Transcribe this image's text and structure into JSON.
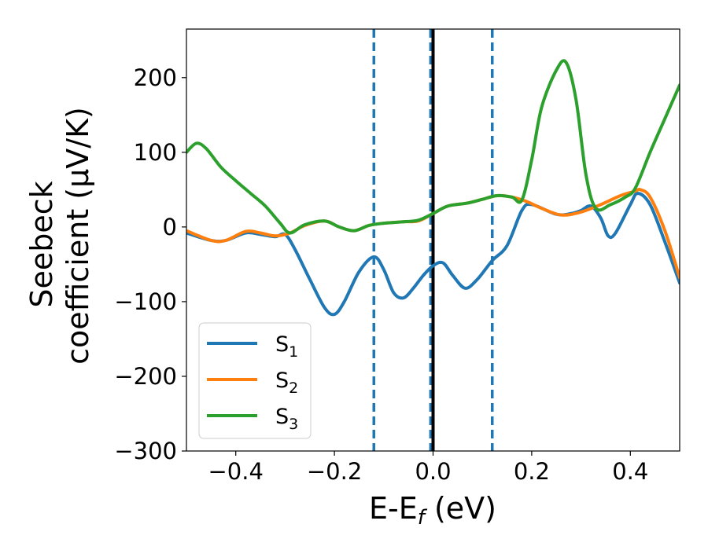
{
  "chart_data": {
    "type": "line",
    "xlabel": {
      "main": "E-E",
      "sub": "f",
      "tail": " (eV)"
    },
    "ylabel": {
      "line1": "Seebeck",
      "line2": "coefficient  (μV/K)"
    },
    "xlim": [
      -0.5,
      0.5
    ],
    "ylim": [
      -300,
      265
    ],
    "xticks": [
      -0.4,
      -0.2,
      0.0,
      0.2,
      0.4
    ],
    "xtick_labels": [
      "−0.4",
      "−0.2",
      "0.0",
      "0.2",
      "0.4"
    ],
    "yticks": [
      -300,
      -200,
      -100,
      0,
      100,
      200
    ],
    "ytick_labels": [
      "−300",
      "−200",
      "−100",
      "0",
      "100",
      "200"
    ],
    "grid": false,
    "legend_position": "bottom-left",
    "vlines": [
      {
        "x": -0.12,
        "style": "dashed",
        "color": "#1f77b4"
      },
      {
        "x": -0.005,
        "style": "dashed",
        "color": "#1f77b4"
      },
      {
        "x": 0.12,
        "style": "dashed",
        "color": "#1f77b4"
      },
      {
        "x": 0.0,
        "style": "solid",
        "color": "#000000"
      }
    ],
    "series": [
      {
        "name": "S",
        "sub": "1",
        "color": "#1f77b4",
        "x": [
          -0.5,
          -0.45,
          -0.42,
          -0.38,
          -0.35,
          -0.32,
          -0.3,
          -0.28,
          -0.25,
          -0.22,
          -0.2,
          -0.18,
          -0.15,
          -0.12,
          -0.1,
          -0.08,
          -0.06,
          -0.04,
          -0.02,
          0.0,
          0.02,
          0.04,
          0.065,
          0.09,
          0.12,
          0.15,
          0.18,
          0.2,
          0.25,
          0.28,
          0.3,
          0.32,
          0.34,
          0.355,
          0.37,
          0.4,
          0.415,
          0.44,
          0.47,
          0.5
        ],
        "y": [
          -8,
          -18,
          -18,
          -8,
          -10,
          -13,
          -10,
          -30,
          -70,
          -108,
          -117,
          -100,
          -60,
          -40,
          -57,
          -88,
          -95,
          -82,
          -65,
          -52,
          -48,
          -65,
          -82,
          -70,
          -45,
          -25,
          22,
          30,
          17,
          18,
          22,
          28,
          12,
          -12,
          -8,
          30,
          45,
          30,
          -20,
          -75
        ]
      },
      {
        "name": "S",
        "sub": "2",
        "color": "#ff7f0e",
        "x": [
          -0.5,
          -0.45,
          -0.42,
          -0.38,
          -0.35,
          -0.32,
          -0.29,
          -0.26,
          -0.22,
          -0.19,
          -0.16,
          -0.13,
          -0.1,
          -0.06,
          -0.03,
          0.0,
          0.03,
          0.07,
          0.1,
          0.13,
          0.16,
          0.19,
          0.22,
          0.26,
          0.3,
          0.34,
          0.38,
          0.41,
          0.42,
          0.44,
          0.47,
          0.5
        ],
        "y": [
          -5,
          -18,
          -18,
          -6,
          -8,
          -12,
          -8,
          2,
          8,
          0,
          -5,
          2,
          5,
          7,
          8,
          18,
          28,
          32,
          37,
          42,
          40,
          34,
          25,
          16,
          20,
          30,
          42,
          48,
          50,
          40,
          -5,
          -68
        ]
      },
      {
        "name": "S",
        "sub": "3",
        "color": "#2ca02c",
        "x": [
          -0.5,
          -0.48,
          -0.46,
          -0.43,
          -0.4,
          -0.37,
          -0.34,
          -0.31,
          -0.29,
          -0.26,
          -0.22,
          -0.19,
          -0.16,
          -0.13,
          -0.1,
          -0.06,
          -0.03,
          0.0,
          0.03,
          0.07,
          0.1,
          0.13,
          0.16,
          0.18,
          0.2,
          0.22,
          0.25,
          0.27,
          0.29,
          0.31,
          0.33,
          0.36,
          0.39,
          0.41,
          0.44,
          0.47,
          0.5
        ],
        "y": [
          100,
          112,
          105,
          80,
          62,
          45,
          28,
          5,
          -8,
          3,
          8,
          0,
          -5,
          2,
          5,
          7,
          9,
          18,
          28,
          32,
          37,
          42,
          40,
          36,
          90,
          160,
          210,
          220,
          170,
          70,
          25,
          30,
          40,
          52,
          100,
          145,
          190
        ]
      }
    ]
  }
}
